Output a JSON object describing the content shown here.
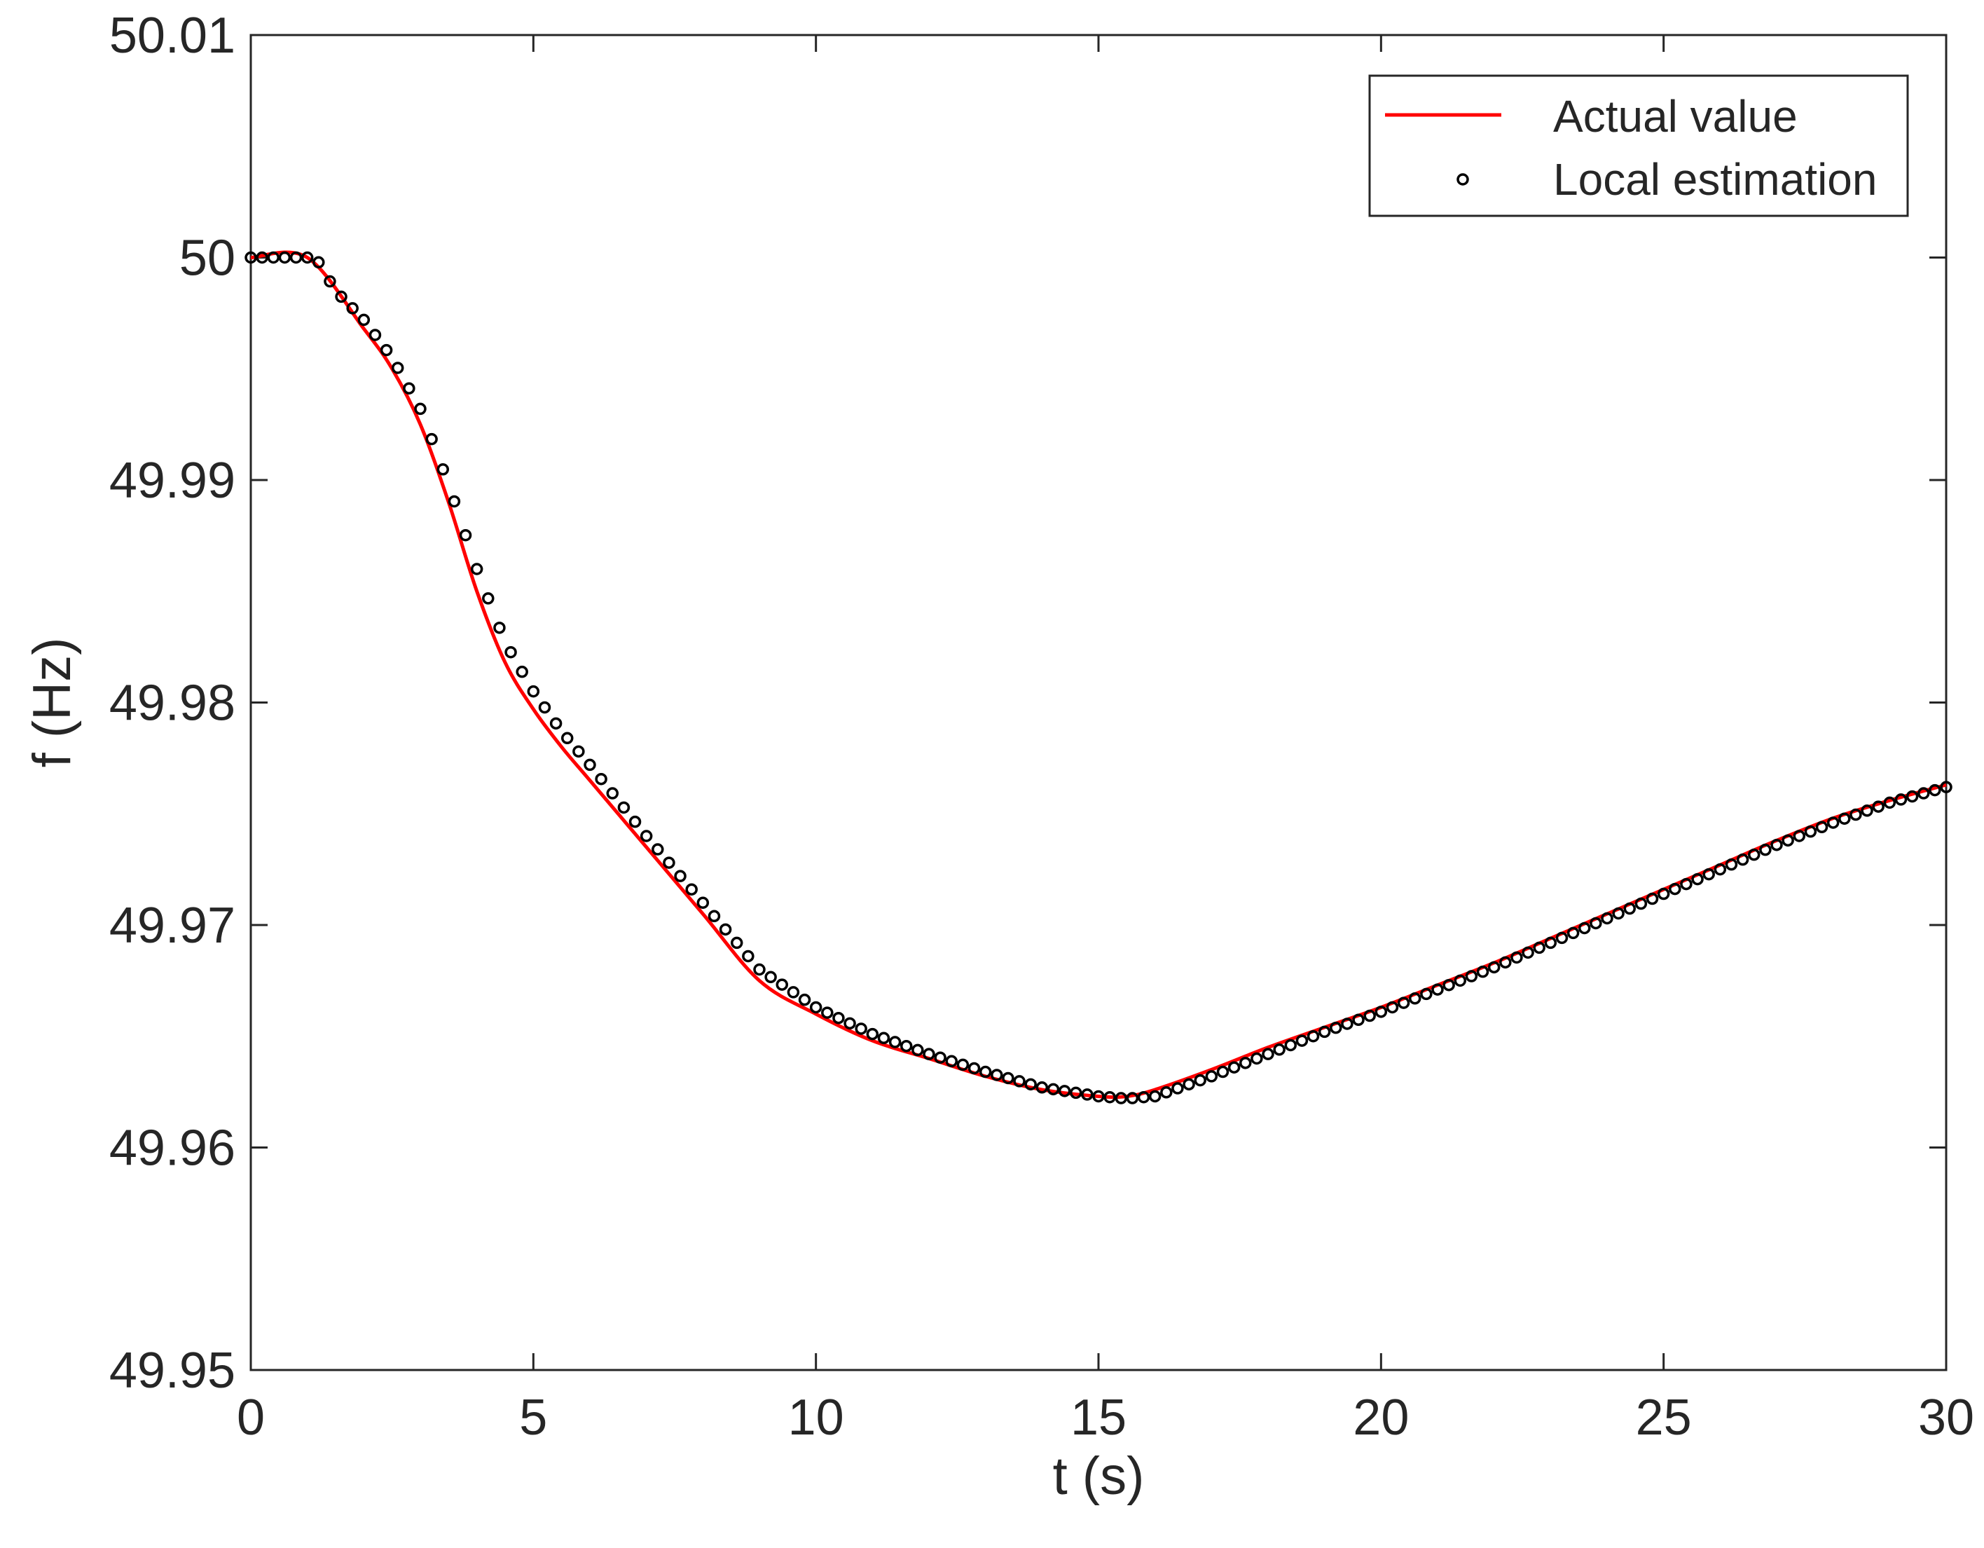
{
  "chart_data": {
    "type": "line",
    "title": "",
    "xlabel": "t (s)",
    "ylabel": "f (Hz)",
    "xlim": [
      0,
      30
    ],
    "ylim": [
      49.95,
      50.01
    ],
    "xticks": [
      0,
      5,
      10,
      15,
      20,
      25,
      30
    ],
    "xtick_labels": [
      "0",
      "5",
      "10",
      "15",
      "20",
      "25",
      "30"
    ],
    "yticks": [
      49.95,
      49.96,
      49.97,
      49.98,
      49.99,
      50,
      50.01
    ],
    "ytick_labels": [
      "49.95",
      "49.96",
      "49.97",
      "49.98",
      "49.99",
      "50",
      "50.01"
    ],
    "grid": false,
    "legend_position": "top-right",
    "series": [
      {
        "name": "Actual value",
        "style": "line",
        "color": "#ff0000",
        "x": [
          0,
          1,
          2,
          2.5,
          3,
          3.5,
          4,
          4.5,
          5,
          5.5,
          6,
          7,
          8,
          9,
          10,
          11,
          12,
          13,
          14,
          15,
          15.5,
          16,
          17,
          18,
          19,
          20,
          21,
          22,
          23,
          24,
          25,
          26,
          27,
          28,
          29,
          30
        ],
        "y": [
          50.0,
          50.0,
          49.9968,
          49.995,
          49.9925,
          49.989,
          49.985,
          49.9818,
          49.9797,
          49.978,
          49.9765,
          49.9735,
          49.9705,
          49.9675,
          49.966,
          49.9648,
          49.964,
          49.9632,
          49.9626,
          49.9623,
          49.9623,
          49.9626,
          49.9635,
          49.9645,
          49.9654,
          49.9663,
          49.9673,
          49.9683,
          49.9694,
          49.9705,
          49.9716,
          49.9727,
          49.9738,
          49.9748,
          49.9756,
          49.9763
        ]
      },
      {
        "name": "Local estimation",
        "style": "markers",
        "color": "#000000",
        "x": [
          0,
          1,
          1.15,
          1.5,
          2,
          2.5,
          3,
          3.5,
          4,
          4.5,
          5,
          5.5,
          6,
          7,
          8,
          9,
          10,
          11,
          12,
          13,
          14,
          15,
          15.5,
          16,
          17,
          18,
          19,
          20,
          21,
          22,
          23,
          24,
          25,
          26,
          27,
          28,
          29,
          30
        ],
        "y": [
          50.0,
          50.0,
          50.0,
          49.9985,
          49.9972,
          49.9955,
          49.9932,
          49.9898,
          49.986,
          49.9827,
          49.9805,
          49.9787,
          49.9772,
          49.974,
          49.971,
          49.968,
          49.9663,
          49.9651,
          49.9642,
          49.9634,
          49.9627,
          49.9623,
          49.9622,
          49.9623,
          49.9632,
          49.9642,
          49.9652,
          49.9661,
          49.9671,
          49.9681,
          49.9692,
          49.9703,
          49.9714,
          49.9725,
          49.9736,
          49.9746,
          49.9755,
          49.9762
        ]
      }
    ]
  }
}
